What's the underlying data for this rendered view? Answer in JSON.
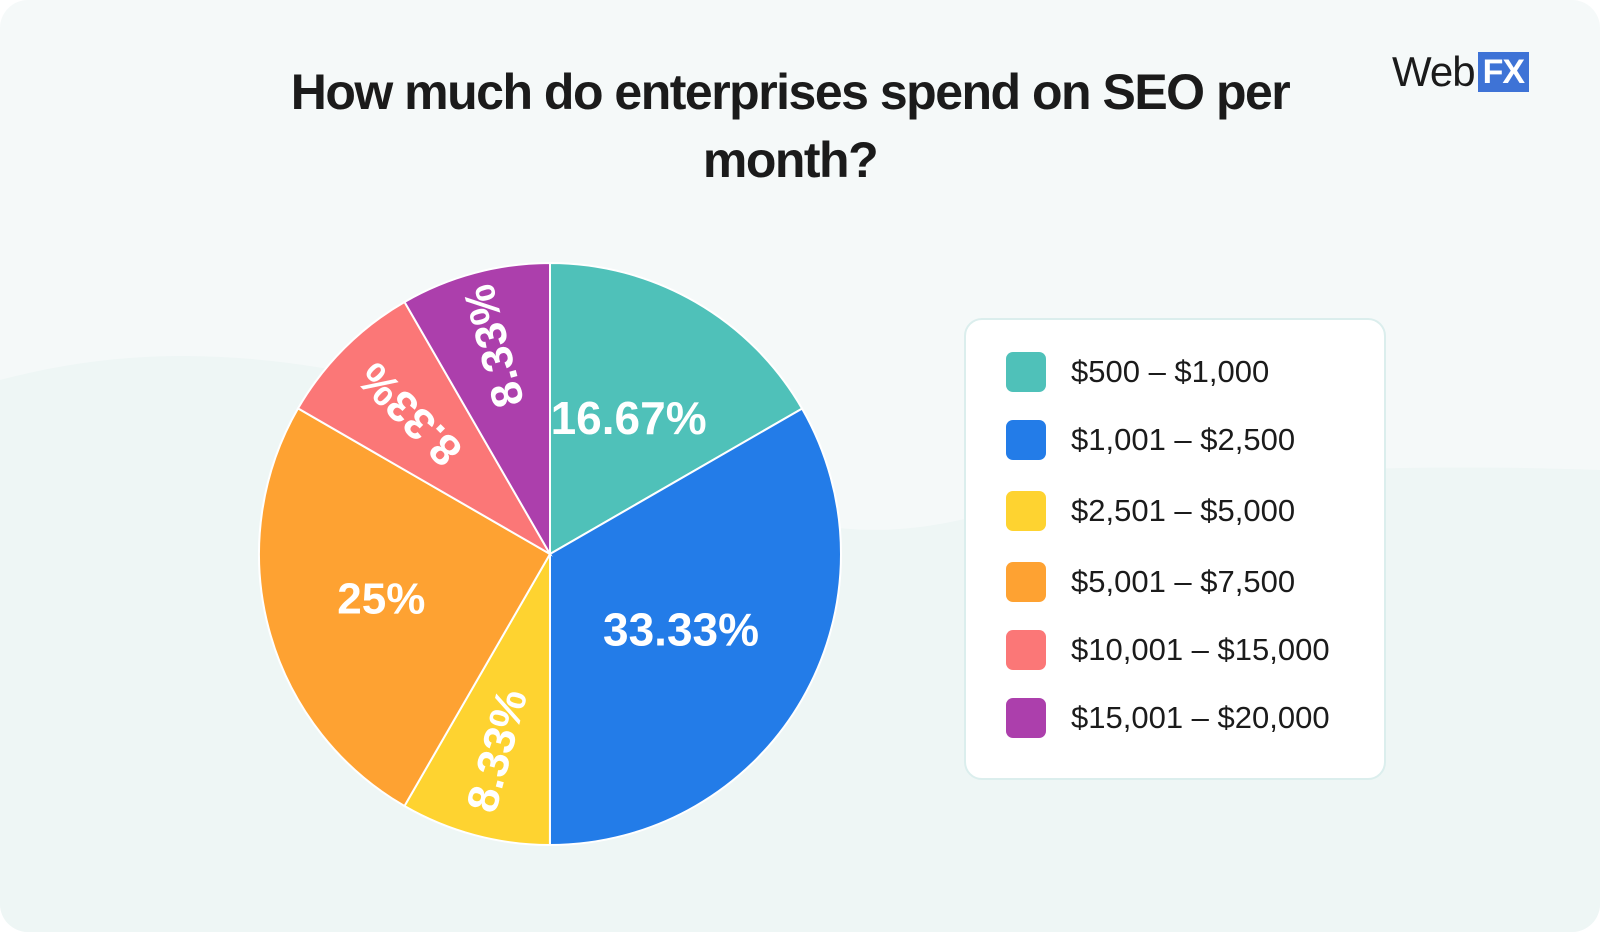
{
  "logo": {
    "web": "Web",
    "fx": "FX"
  },
  "chart_data": {
    "type": "pie",
    "title": "How much do enterprises spend on SEO per month?",
    "slices": [
      {
        "label": "$500 – $1,000",
        "value": 16.67,
        "value_label": "16.67%",
        "color": "#4fc1b9"
      },
      {
        "label": "$1,001 – $2,500",
        "value": 33.33,
        "value_label": "33.33%",
        "color": "#237ce8"
      },
      {
        "label": "$2,501 – $5,000",
        "value": 8.33,
        "value_label": "8.33%",
        "color": "#fed330"
      },
      {
        "label": "$5,001 – $7,500",
        "value": 25,
        "value_label": "25%",
        "color": "#fea232"
      },
      {
        "label": "$10,001 – $15,000",
        "value": 8.33,
        "value_label": "8.33%",
        "color": "#fb7777"
      },
      {
        "label": "$15,001 – $20,000",
        "value": 8.33,
        "value_label": "8.33%",
        "color": "#ac3fac"
      }
    ],
    "legend_position": "right"
  }
}
